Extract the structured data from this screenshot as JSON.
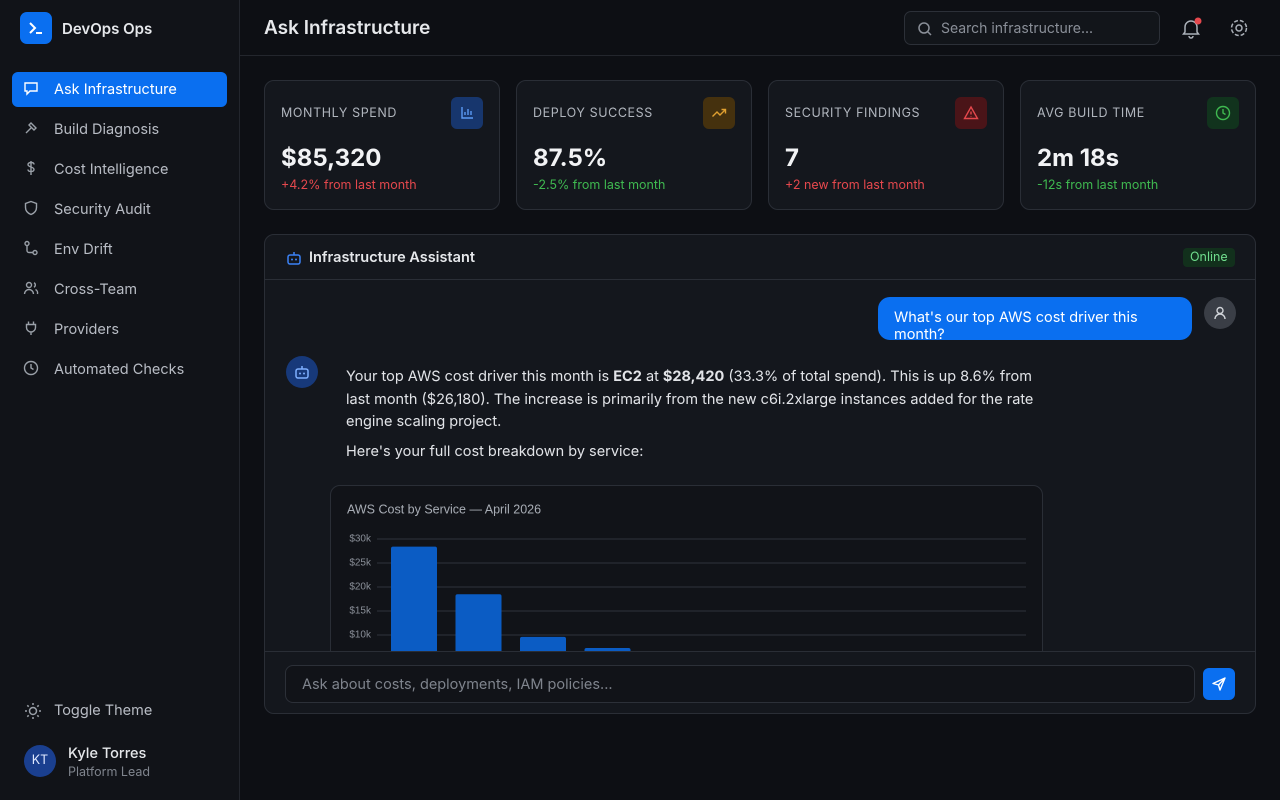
{
  "sidebar": {
    "brand": "DevOps Ops",
    "nav": [
      "Ask Infrastructure",
      "Build Diagnosis",
      "Cost Intelligence",
      "Security Audit",
      "Env Drift",
      "Cross-Team",
      "Providers",
      "Automated Checks"
    ],
    "toggle": "Toggle Theme",
    "user": {
      "initials": "KT",
      "name": "Kyle Torres",
      "role": "Platform Lead"
    }
  },
  "header": {
    "title": "Ask Infrastructure",
    "search_placeholder": "Search infrastructure..."
  },
  "stats": [
    {
      "label": "MONTHLY SPEND",
      "value": "$85,320",
      "change": "+4.2% from last month"
    },
    {
      "label": "DEPLOY SUCCESS",
      "value": "87.5%",
      "change": "-2.5% from last month"
    },
    {
      "label": "SECURITY FINDINGS",
      "value": "7",
      "change": "+2 new from last month"
    },
    {
      "label": "AVG BUILD TIME",
      "value": "2m 18s",
      "change": "-12s from last month"
    }
  ],
  "assistant": {
    "title": "Infrastructure Assistant",
    "status": "Online",
    "user_message": "What's our top AWS cost driver this month?",
    "reply": {
      "parts": [
        "Your top AWS cost driver this month is ",
        "EC2",
        " at ",
        "$28,420",
        " (33.3% of total spend). This is up 8.6% from last month ($26,180). The increase is primarily from the new c6i.2xlarge instances added for the rate engine scaling project."
      ],
      "followup": "Here's your full cost breakdown by service:"
    },
    "input_placeholder": "Ask about costs, deployments, IAM policies..."
  },
  "chart_data": {
    "type": "bar",
    "title": "AWS Cost by Service — April 2026",
    "categories": [
      null,
      null,
      null,
      null
    ],
    "values": [
      28420,
      18500,
      9600,
      7300
    ],
    "color": "#0b5cc4",
    "ylim": [
      0,
      30000
    ],
    "yticks": [
      {
        "value": 10000,
        "label": "$10k"
      },
      {
        "value": 15000,
        "label": "$15k"
      },
      {
        "value": 20000,
        "label": "$20k"
      },
      {
        "value": 25000,
        "label": "$25k"
      },
      {
        "value": 30000,
        "label": "$30k"
      }
    ],
    "grid": true
  }
}
